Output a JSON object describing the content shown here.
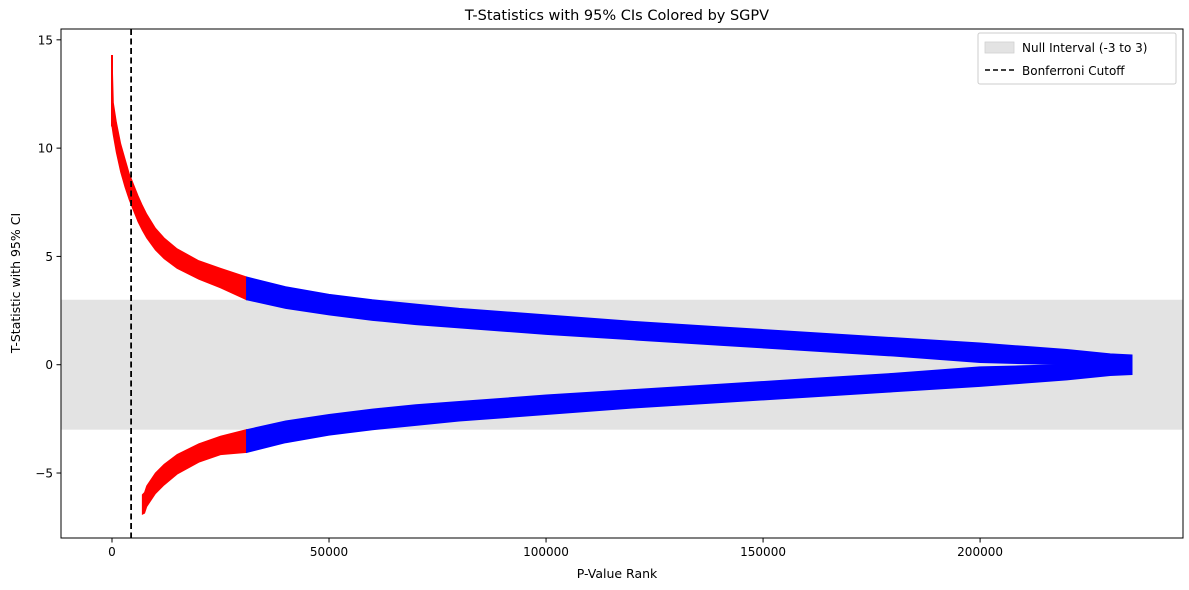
{
  "chart_data": {
    "type": "area",
    "title": "T-Statistics with 95% CIs Colored by SGPV",
    "xlabel": "P-Value Rank",
    "ylabel": "T-Statistic with 95% CI",
    "xlim": [
      -11750,
      246750
    ],
    "ylim": [
      -8.0,
      15.5
    ],
    "x_ticks": [
      0,
      50000,
      100000,
      150000,
      200000
    ],
    "x_tick_labels": [
      "0",
      "50000",
      "100000",
      "150000",
      "200000"
    ],
    "y_ticks": [
      -5,
      0,
      5,
      10,
      15
    ],
    "y_tick_labels": [
      "−5",
      "0",
      "5",
      "10",
      "15"
    ],
    "grid": false,
    "legend_position": "top-right",
    "null_interval": {
      "label": "Null Interval (-3 to 3)",
      "lower": -3,
      "upper": 3,
      "color": "#e3e3e3"
    },
    "bonferroni_cutoff": {
      "label": "Bonferroni Cutoff",
      "x": 4400,
      "color": "#000000"
    },
    "significant_color": "#ff0000",
    "nonsignificant_color": "#0000ff",
    "sgpv_switch_rank": 31000,
    "series": [
      {
        "name": "upper",
        "x": [
          0,
          300,
          1000,
          2000,
          3000,
          4000,
          5000,
          6000,
          7000,
          8000,
          10000,
          12000,
          15000,
          20000,
          25000,
          31000,
          40000,
          50000,
          60000,
          70000,
          80000,
          100000,
          120000,
          140000,
          160000,
          180000,
          200000,
          210000,
          220000,
          230000,
          235000
        ],
        "y_high": [
          14.3,
          12.1,
          11.2,
          10.2,
          9.5,
          8.8,
          8.3,
          7.8,
          7.35,
          6.95,
          6.3,
          5.85,
          5.35,
          4.8,
          4.45,
          4.05,
          3.6,
          3.25,
          3.0,
          2.8,
          2.6,
          2.3,
          2.0,
          1.75,
          1.5,
          1.25,
          1.0,
          0.85,
          0.7,
          0.5,
          0.45
        ],
        "y_low": [
          11.0,
          10.6,
          9.8,
          8.9,
          8.2,
          7.6,
          7.1,
          6.6,
          6.2,
          5.85,
          5.3,
          4.9,
          4.45,
          3.95,
          3.55,
          3.0,
          2.6,
          2.3,
          2.05,
          1.85,
          1.7,
          1.4,
          1.15,
          0.9,
          0.65,
          0.4,
          0.1,
          0.05,
          0.0,
          -0.1,
          -0.15
        ]
      },
      {
        "name": "lower",
        "x": [
          7000,
          7500,
          8000,
          10000,
          12000,
          15000,
          20000,
          25000,
          31000,
          40000,
          50000,
          60000,
          70000,
          80000,
          100000,
          120000,
          140000,
          160000,
          180000,
          200000,
          210000,
          220000,
          230000,
          235000
        ],
        "y_high": [
          -6.0,
          -5.9,
          -5.6,
          -5.0,
          -4.6,
          -4.15,
          -3.65,
          -3.3,
          -3.0,
          -2.6,
          -2.3,
          -2.05,
          -1.85,
          -1.7,
          -1.4,
          -1.15,
          -0.9,
          -0.65,
          -0.4,
          -0.1,
          -0.05,
          0.0,
          0.1,
          0.15
        ],
        "y_low": [
          -6.9,
          -6.85,
          -6.55,
          -5.95,
          -5.55,
          -5.05,
          -4.5,
          -4.15,
          -4.05,
          -3.6,
          -3.25,
          -3.0,
          -2.8,
          -2.6,
          -2.3,
          -2.0,
          -1.75,
          -1.5,
          -1.25,
          -1.0,
          -0.85,
          -0.7,
          -0.5,
          -0.45
        ]
      }
    ]
  }
}
